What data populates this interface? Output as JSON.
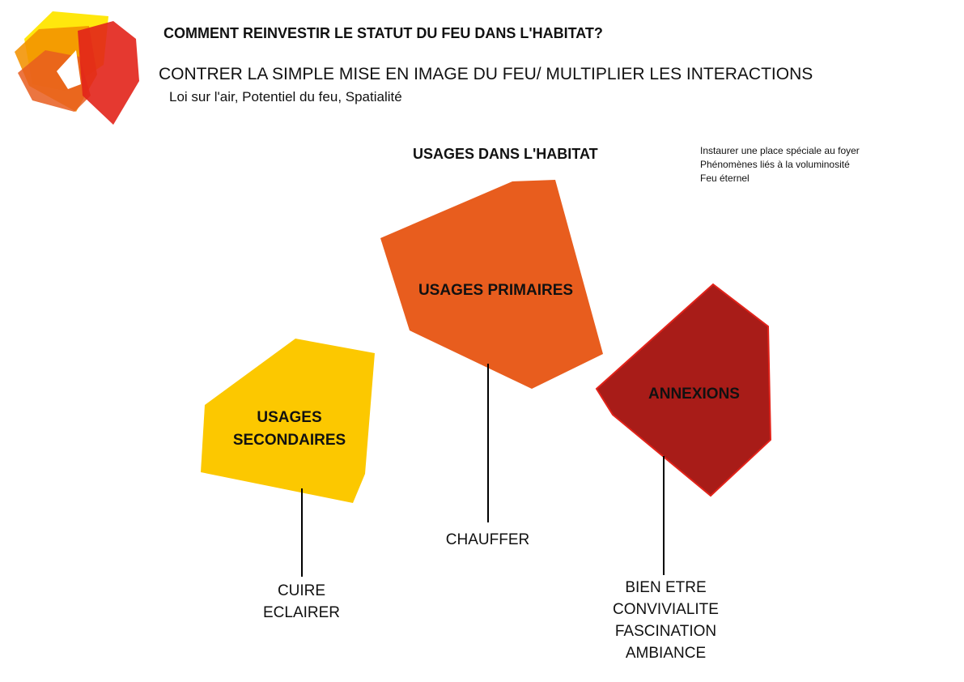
{
  "header": {
    "title": "COMMENT REINVESTIR LE STATUT DU FEU DANS L'HABITAT?",
    "subtitle": "CONTRER LA SIMPLE MISE EN IMAGE DU FEU/ MULTIPLIER LES INTERACTIONS",
    "keywords": "Loi sur l'air, Potentiel du feu, Spatialité"
  },
  "section": {
    "title": "USAGES DANS L'HABITAT",
    "notes": [
      "Instaurer une place spéciale au foyer",
      "Phénomènes liés à la voluminosité",
      "Feu éternel"
    ]
  },
  "categories": {
    "primary": {
      "label": "USAGES PRIMAIRES",
      "color": "#e85d1e",
      "items": [
        "CHAUFFER"
      ]
    },
    "secondary": {
      "label_lines": [
        "USAGES",
        "SECONDAIRES"
      ],
      "color": "#fcc800",
      "items": [
        "CUIRE",
        "ECLAIRER"
      ]
    },
    "annex": {
      "label": "ANNEXIONS",
      "color": "#a81c18",
      "stroke": "#e2231a",
      "items": [
        "BIEN ETRE",
        "CONVIVIALITE",
        "FASCINATION",
        "AMBIANCE"
      ]
    }
  },
  "logo": {
    "icon": "flame-logo-icon",
    "colors": [
      "#ffe600",
      "#f39200",
      "#e85d1e",
      "#e2231a"
    ]
  }
}
